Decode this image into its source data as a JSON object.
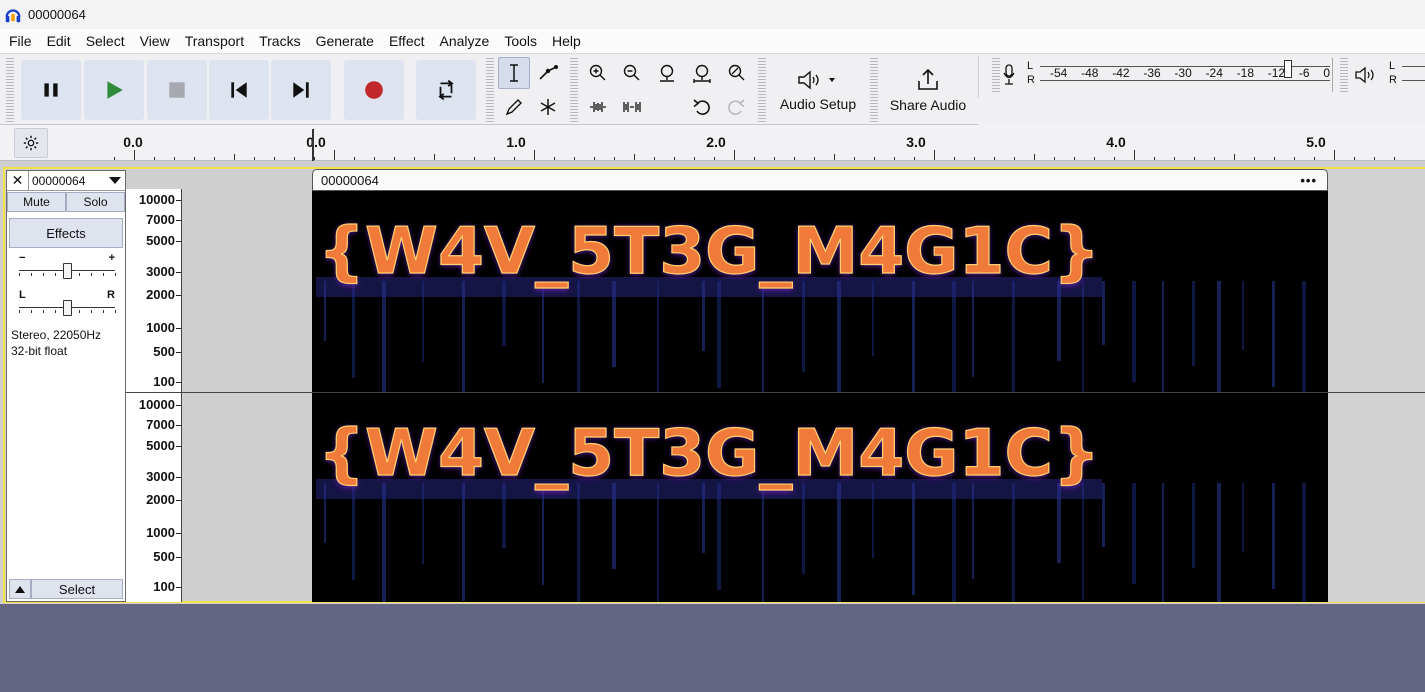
{
  "window": {
    "title": "00000064",
    "app_icon": "headphones-icon"
  },
  "menu": [
    "File",
    "Edit",
    "Select",
    "View",
    "Transport",
    "Tracks",
    "Generate",
    "Effect",
    "Analyze",
    "Tools",
    "Help"
  ],
  "toolbar": {
    "transport_icons": [
      "pause-icon",
      "play-icon",
      "stop-icon",
      "skip-to-start-icon",
      "skip-to-end-icon",
      "record-icon",
      "loop-icon"
    ],
    "audio_setup_label": "Audio Setup",
    "share_audio_label": "Share Audio",
    "meter_labels": {
      "left": "L",
      "right": "R"
    },
    "record_meter_scale": [
      "-54",
      "-48",
      "-42",
      "-36",
      "-30",
      "-24",
      "-18",
      "-12",
      "-6",
      "0"
    ]
  },
  "ruler": {
    "labels": [
      "0.0",
      "0.0",
      "1.0",
      "2.0",
      "3.0",
      "4.0",
      "5.0"
    ]
  },
  "track": {
    "name": "00000064",
    "close": "✕",
    "mute": "Mute",
    "solo": "Solo",
    "effects": "Effects",
    "gain_min": "−",
    "gain_max": "+",
    "pan_left": "L",
    "pan_right": "R",
    "info_line1": "Stereo, 22050Hz",
    "info_line2": "32-bit float",
    "select": "Select",
    "gain_level": 0.5,
    "pan_level": 0.5
  },
  "freq_axis": [
    "10000",
    "7000",
    "5000",
    "3000",
    "2000",
    "1000",
    "500",
    "100"
  ],
  "clip": {
    "name": "00000064",
    "menu": "•••",
    "spectrogram_text": "{W4V_5T3G_M4G1C}"
  },
  "colors": {
    "selection": "#f2e24a",
    "background": "#636583",
    "button": "#dde3ef"
  }
}
